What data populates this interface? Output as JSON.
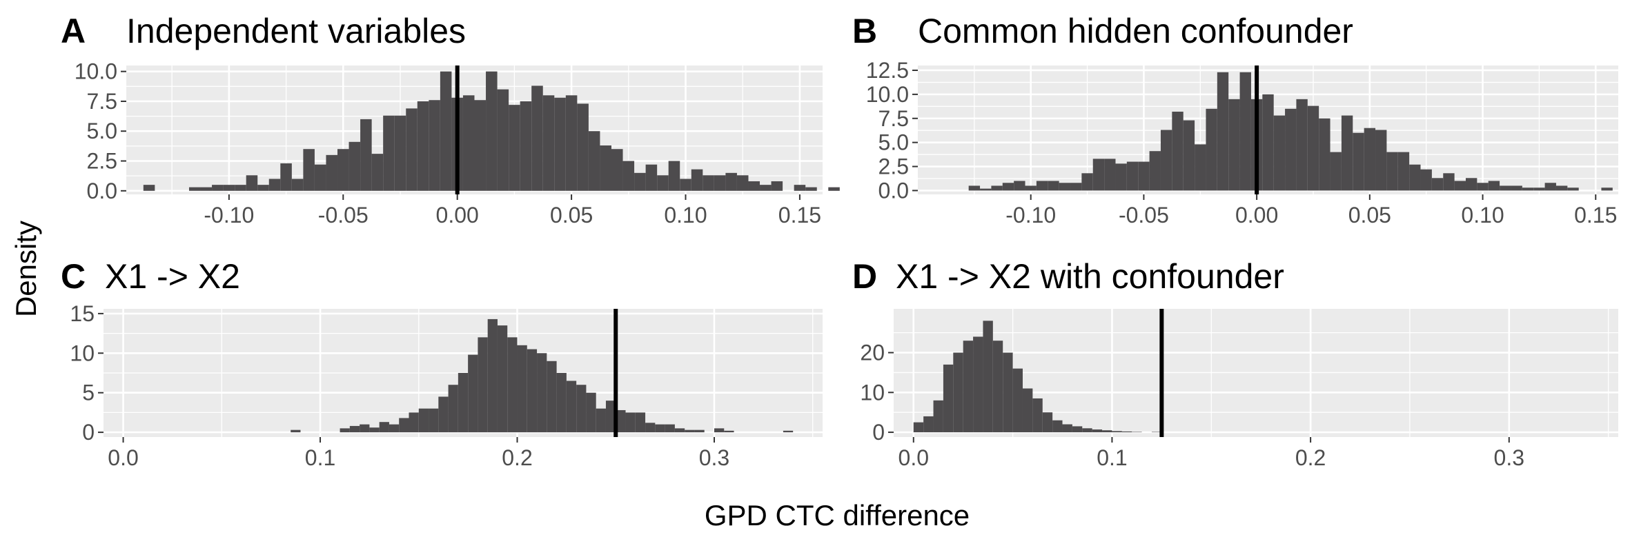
{
  "figure": {
    "xlabel": "GPD CTC difference",
    "ylabel": "Density",
    "panel_fill": "#ebebeb",
    "bar_fill": "#4d4b4d",
    "vline_color": "#000000"
  },
  "chart_data": [
    {
      "type": "histogram",
      "tag": "A",
      "title": "Independent variables",
      "bin_width": 0.005,
      "bin_start": -0.1375,
      "counts": [
        0.5,
        0,
        0,
        0,
        0.3,
        0.3,
        0.5,
        0.5,
        0.5,
        1.3,
        0.5,
        1,
        2.3,
        1,
        3.5,
        2.2,
        3,
        3.5,
        4.1,
        6,
        3.1,
        6.3,
        6.3,
        6.9,
        7.5,
        7.6,
        10,
        7.8,
        8,
        7.6,
        10,
        8.5,
        7.2,
        7.5,
        8.8,
        8,
        7.8,
        8,
        7.3,
        5,
        3.8,
        3.5,
        2.5,
        1.5,
        2.2,
        1.3,
        2.5,
        1,
        1.8,
        1.3,
        1.3,
        1.5,
        1.3,
        0.8,
        0.5,
        0.8,
        0,
        0.5,
        0.3,
        0,
        0.3
      ],
      "vline": 0,
      "xlim": [
        -0.145,
        0.16
      ],
      "ylim": [
        -0.3,
        10.5
      ],
      "xticks": [
        -0.1,
        -0.05,
        0,
        0.05,
        0.1,
        0.15
      ],
      "xtick_labels": [
        "-0.10",
        "-0.05",
        "0.00",
        "0.05",
        "0.10",
        "0.15"
      ],
      "yticks": [
        0,
        2.5,
        5,
        7.5,
        10
      ],
      "ytick_labels": [
        "0.0",
        "2.5",
        "5.0",
        "7.5",
        "10.0"
      ]
    },
    {
      "type": "histogram",
      "tag": "B",
      "title": "Common hidden confounder",
      "bin_width": 0.005,
      "bin_start": -0.1325,
      "counts": [
        0,
        0.5,
        0.2,
        0.5,
        0.8,
        1,
        0.5,
        1,
        1,
        0.8,
        0.8,
        1.8,
        3.3,
        3.3,
        2.8,
        3,
        3,
        4.1,
        6.3,
        8.2,
        7.3,
        4.8,
        8.5,
        12.3,
        9.5,
        12.3,
        9.5,
        10,
        7.8,
        8.5,
        9.5,
        8.8,
        7.5,
        4,
        7.8,
        6,
        6.5,
        6.3,
        4,
        4,
        2.7,
        2.2,
        1.3,
        1.8,
        1,
        1.3,
        0.8,
        1,
        0.5,
        0.5,
        0.3,
        0.3,
        0.8,
        0.5,
        0.3,
        0,
        0,
        0.3
      ],
      "vline": 0,
      "xlim": [
        -0.15,
        0.16
      ],
      "ylim": [
        -0.4,
        13
      ],
      "xticks": [
        -0.1,
        -0.05,
        0,
        0.05,
        0.1,
        0.15
      ],
      "xtick_labels": [
        "-0.10",
        "-0.05",
        "0.00",
        "0.05",
        "0.10",
        "0.15"
      ],
      "yticks": [
        0,
        2.5,
        5,
        7.5,
        10,
        12.5
      ],
      "ytick_labels": [
        "0.0",
        "2.5",
        "5.0",
        "7.5",
        "10.0",
        "12.5"
      ]
    },
    {
      "type": "histogram",
      "tag": "C",
      "title": "X1 -> X2",
      "bin_width": 0.005,
      "bin_start": 0.085,
      "counts": [
        0.3,
        0,
        0,
        0,
        0,
        0.5,
        0.8,
        1,
        0.6,
        1.3,
        1,
        1.8,
        2.5,
        3,
        3,
        4.5,
        6,
        7.5,
        9.8,
        12,
        14.3,
        13.5,
        12,
        11,
        10.5,
        10,
        9,
        7.5,
        6.5,
        6,
        5,
        3,
        4,
        2.8,
        2.5,
        2.5,
        1.2,
        1,
        1,
        0.5,
        0.3,
        0.3,
        0,
        0.5,
        0.2,
        0,
        0,
        0,
        0,
        0,
        0.2
      ],
      "vline": 0.25,
      "xlim": [
        -0.01,
        0.355
      ],
      "ylim": [
        -0.6,
        15.6
      ],
      "xticks": [
        0,
        0.1,
        0.2,
        0.3
      ],
      "xtick_labels": [
        "0.0",
        "0.1",
        "0.2",
        "0.3"
      ],
      "yticks": [
        0,
        5,
        10,
        15
      ],
      "ytick_labels": [
        "0",
        "5",
        "10",
        "15"
      ]
    },
    {
      "type": "histogram",
      "tag": "D",
      "title": "X1 -> X2 with confounder",
      "bin_width": 0.005,
      "bin_start": 0,
      "counts": [
        2.5,
        4,
        8,
        17,
        20,
        23,
        24,
        28,
        23,
        20,
        16,
        11,
        8.5,
        5,
        3,
        2,
        1.5,
        1,
        0.7,
        0.5,
        0.3,
        0.2,
        0.1,
        0,
        0.1
      ],
      "vline": 0.125,
      "xlim": [
        -0.01,
        0.355
      ],
      "ylim": [
        -1.2,
        31
      ],
      "xticks": [
        0,
        0.1,
        0.2,
        0.3
      ],
      "xtick_labels": [
        "0.0",
        "0.1",
        "0.2",
        "0.3"
      ],
      "yticks": [
        0,
        10,
        20
      ],
      "ytick_labels": [
        "0",
        "10",
        "20"
      ]
    }
  ]
}
